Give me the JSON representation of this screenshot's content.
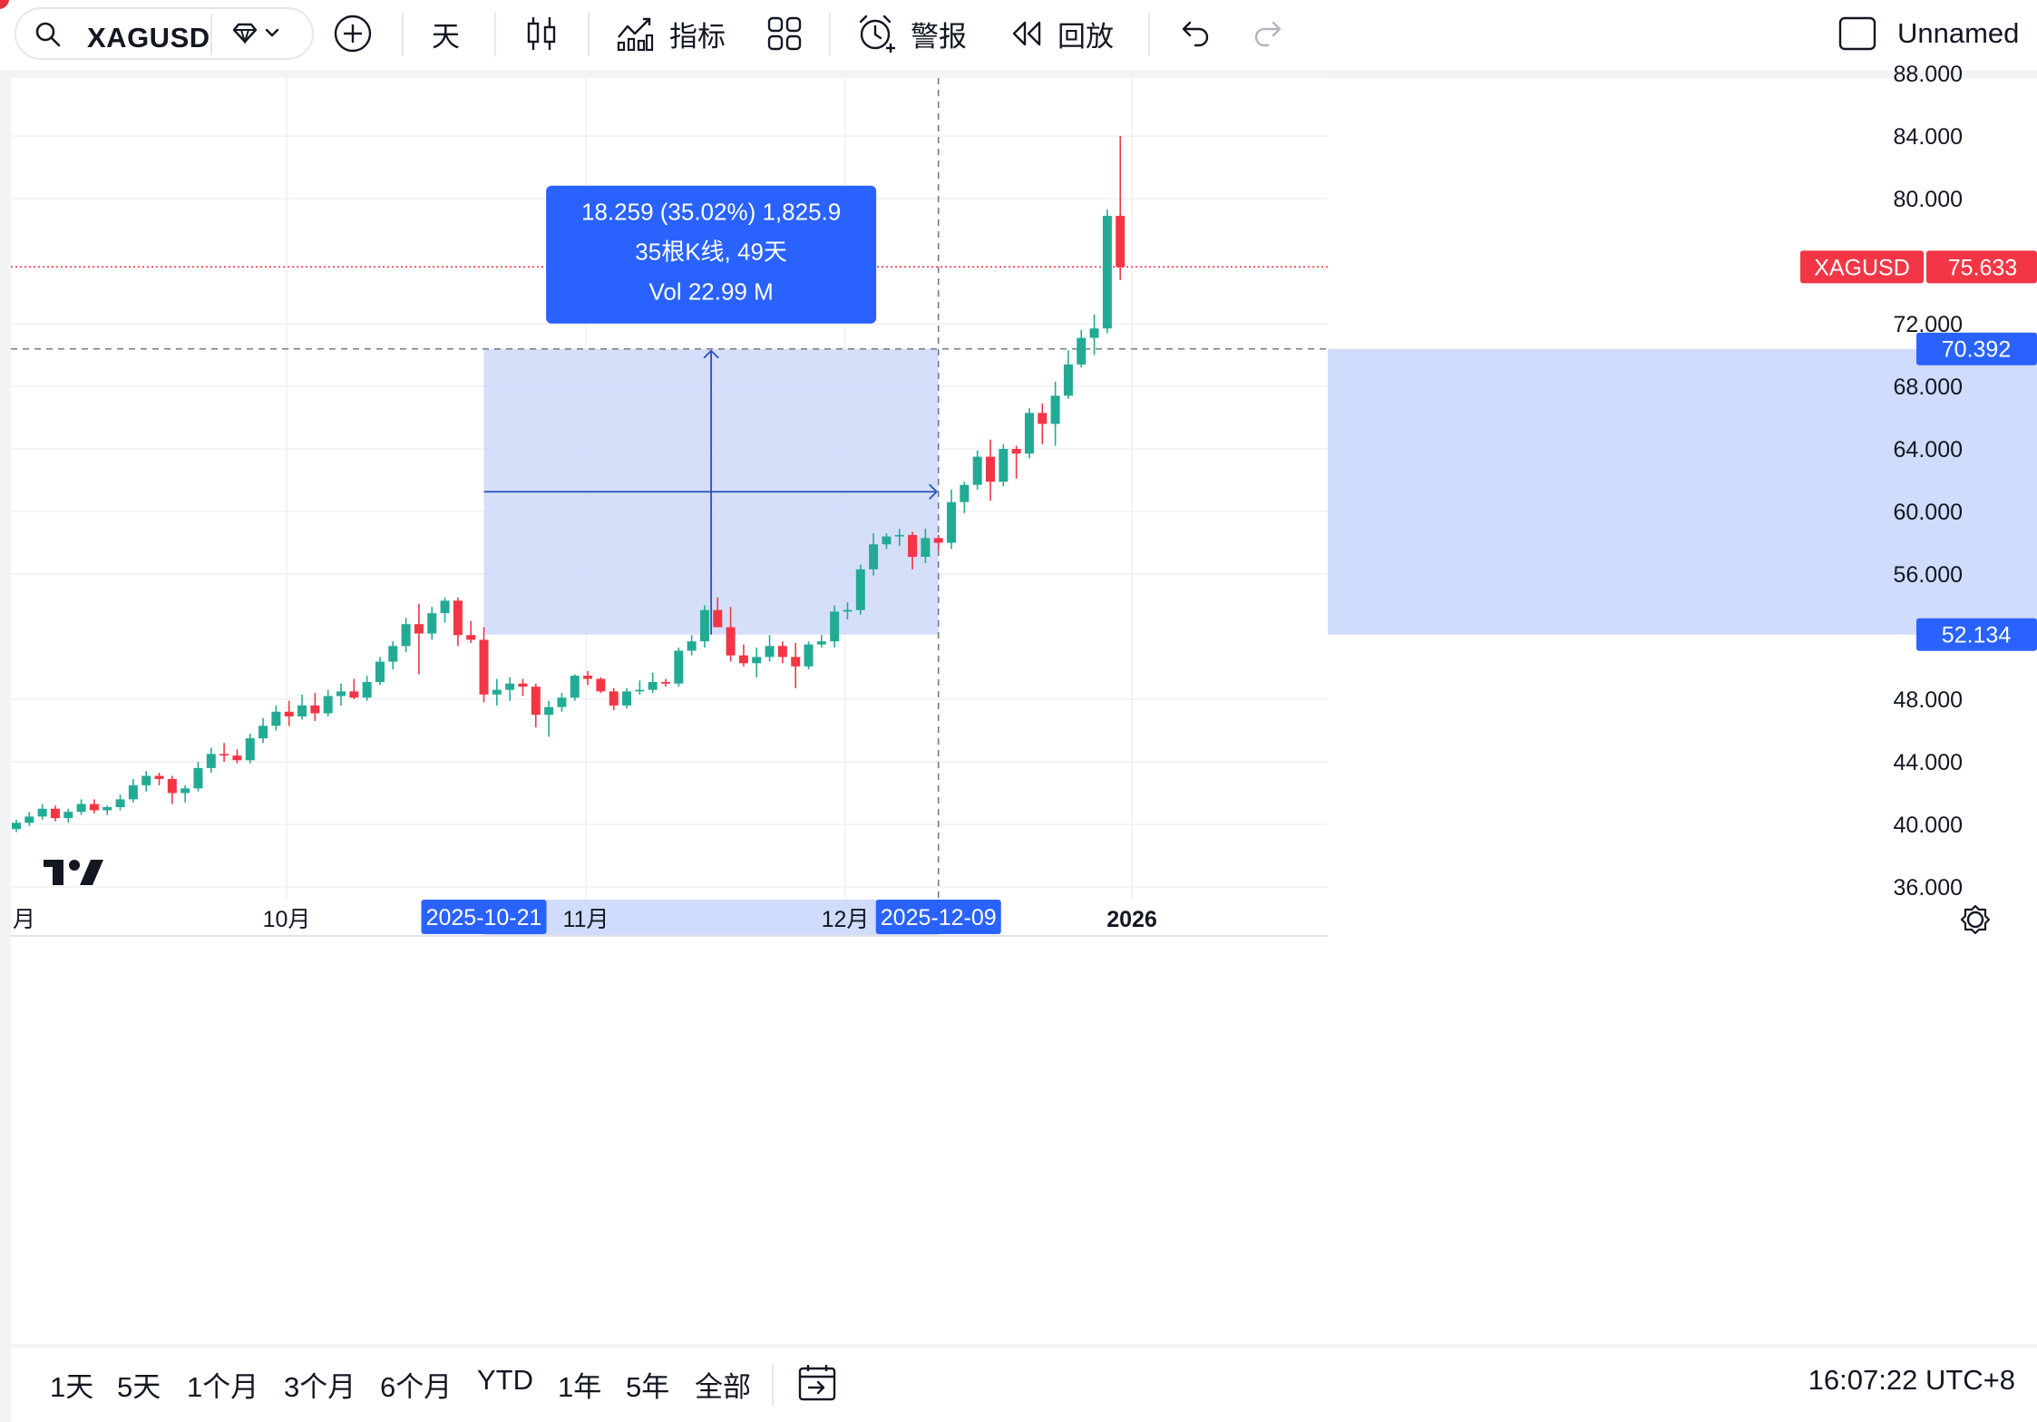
{
  "toolbar": {
    "symbol": "XAGUSD",
    "interval": "天",
    "indicators_label": "指标",
    "alerts_label": "警报",
    "replay_label": "回放",
    "layout_name": "Unnamed"
  },
  "chart_data": {
    "type": "candlestick",
    "symbol": "XAGUSD",
    "ylim": [
      36,
      88
    ],
    "y_ticks": [
      "88.000",
      "84.000",
      "80.000",
      "72.000",
      "68.000",
      "64.000",
      "60.000",
      "56.000",
      "48.000",
      "44.000",
      "40.000",
      "36.000"
    ],
    "x_ticks": [
      "月",
      "10月",
      "11月",
      "12月",
      "2026"
    ],
    "current_price": {
      "label": "XAGUSD",
      "value": "75.633"
    },
    "crosshair_price": "70.392",
    "range_low_price": "52.134",
    "range_start_date": "2025-10-21",
    "range_end_date": "2025-12-09",
    "measure": {
      "line1": "18.259 (35.02%) 1,825.9",
      "line2": "35根K线, 49天",
      "line3": "Vol 22.99 M"
    },
    "candles": [
      [
        39.7,
        40.3,
        39.5,
        40.1
      ],
      [
        40.1,
        40.8,
        39.9,
        40.5
      ],
      [
        40.5,
        41.3,
        40.3,
        41.0
      ],
      [
        41.0,
        41.2,
        40.2,
        40.4
      ],
      [
        40.4,
        41.0,
        40.1,
        40.8
      ],
      [
        40.8,
        41.6,
        40.6,
        41.3
      ],
      [
        41.3,
        41.6,
        40.7,
        40.9
      ],
      [
        40.9,
        41.2,
        40.6,
        41.1
      ],
      [
        41.1,
        41.9,
        40.9,
        41.6
      ],
      [
        41.6,
        42.9,
        41.4,
        42.5
      ],
      [
        42.5,
        43.4,
        42.1,
        43.1
      ],
      [
        43.1,
        43.3,
        42.5,
        42.9
      ],
      [
        42.9,
        43.1,
        41.3,
        42.0
      ],
      [
        42.0,
        42.5,
        41.4,
        42.3
      ],
      [
        42.3,
        44.0,
        42.1,
        43.6
      ],
      [
        43.6,
        44.9,
        43.3,
        44.5
      ],
      [
        44.5,
        45.2,
        44.0,
        44.4
      ],
      [
        44.4,
        44.8,
        43.9,
        44.1
      ],
      [
        44.1,
        45.8,
        43.9,
        45.5
      ],
      [
        45.5,
        46.8,
        45.2,
        46.3
      ],
      [
        46.3,
        47.6,
        46.0,
        47.2
      ],
      [
        47.2,
        47.9,
        46.3,
        46.9
      ],
      [
        46.9,
        48.3,
        46.7,
        47.6
      ],
      [
        47.6,
        48.4,
        46.6,
        47.1
      ],
      [
        47.1,
        48.6,
        46.9,
        48.2
      ],
      [
        48.2,
        49.0,
        47.6,
        48.5
      ],
      [
        48.5,
        49.3,
        48.0,
        48.1
      ],
      [
        48.1,
        49.5,
        47.9,
        49.1
      ],
      [
        49.1,
        50.7,
        48.9,
        50.4
      ],
      [
        50.4,
        51.7,
        49.9,
        51.4
      ],
      [
        51.4,
        53.2,
        51.0,
        52.8
      ],
      [
        52.8,
        54.1,
        49.6,
        52.2
      ],
      [
        52.2,
        53.9,
        51.8,
        53.5
      ],
      [
        53.5,
        54.5,
        52.9,
        54.3
      ],
      [
        54.3,
        54.5,
        51.4,
        52.1
      ],
      [
        52.1,
        53.0,
        51.6,
        51.8
      ],
      [
        51.8,
        52.6,
        47.8,
        48.3
      ],
      [
        48.3,
        49.3,
        47.6,
        48.6
      ],
      [
        48.6,
        49.4,
        47.9,
        49.0
      ],
      [
        49.0,
        49.3,
        48.2,
        48.8
      ],
      [
        48.8,
        49.0,
        46.2,
        47.0
      ],
      [
        47.0,
        47.9,
        45.6,
        47.5
      ],
      [
        47.5,
        48.4,
        47.2,
        48.1
      ],
      [
        48.1,
        49.6,
        47.9,
        49.5
      ],
      [
        49.5,
        49.8,
        48.9,
        49.3
      ],
      [
        49.3,
        49.4,
        48.4,
        48.5
      ],
      [
        48.5,
        48.7,
        47.3,
        47.6
      ],
      [
        47.6,
        48.7,
        47.4,
        48.5
      ],
      [
        48.5,
        49.2,
        48.3,
        48.6
      ],
      [
        48.6,
        49.7,
        48.4,
        49.1
      ],
      [
        49.1,
        49.3,
        48.8,
        49.0
      ],
      [
        49.0,
        51.3,
        48.8,
        51.1
      ],
      [
        51.1,
        52.1,
        50.8,
        51.7
      ],
      [
        51.7,
        54.0,
        51.3,
        53.7
      ],
      [
        53.7,
        54.5,
        52.6,
        52.6
      ],
      [
        52.6,
        53.9,
        50.4,
        50.8
      ],
      [
        50.8,
        51.5,
        50.1,
        50.3
      ],
      [
        50.3,
        51.3,
        49.4,
        50.7
      ],
      [
        50.7,
        52.1,
        50.4,
        51.4
      ],
      [
        51.4,
        51.7,
        50.3,
        50.7
      ],
      [
        50.7,
        51.6,
        48.7,
        50.1
      ],
      [
        50.1,
        51.7,
        49.9,
        51.5
      ],
      [
        51.5,
        52.1,
        51.3,
        51.7
      ],
      [
        51.7,
        54.0,
        51.3,
        53.6
      ],
      [
        53.6,
        54.2,
        53.1,
        53.7
      ],
      [
        53.7,
        56.6,
        53.4,
        56.3
      ],
      [
        56.3,
        58.6,
        55.9,
        57.9
      ],
      [
        57.9,
        58.6,
        57.6,
        58.4
      ],
      [
        58.4,
        58.9,
        57.8,
        58.5
      ],
      [
        58.5,
        58.7,
        56.3,
        57.1
      ],
      [
        57.1,
        58.9,
        56.7,
        58.3
      ],
      [
        58.3,
        58.5,
        57.5,
        58.0
      ],
      [
        58.0,
        61.4,
        57.6,
        60.6
      ],
      [
        60.6,
        61.9,
        59.9,
        61.7
      ],
      [
        61.7,
        63.9,
        61.4,
        63.5
      ],
      [
        63.5,
        64.6,
        60.7,
        61.9
      ],
      [
        61.9,
        64.3,
        61.6,
        64.0
      ],
      [
        64.0,
        64.2,
        62.1,
        63.7
      ],
      [
        63.7,
        66.6,
        63.4,
        66.3
      ],
      [
        66.3,
        66.9,
        64.3,
        65.6
      ],
      [
        65.6,
        68.3,
        64.2,
        67.4
      ],
      [
        67.4,
        70.3,
        67.2,
        69.4
      ],
      [
        69.4,
        71.6,
        69.2,
        71.1
      ],
      [
        71.1,
        72.6,
        70.0,
        71.7
      ],
      [
        71.7,
        79.3,
        71.4,
        78.9
      ],
      [
        78.9,
        84.0,
        74.8,
        75.633
      ]
    ]
  },
  "ranges": [
    "1天",
    "5天",
    "1个月",
    "3个月",
    "6个月",
    "YTD",
    "1年",
    "5年",
    "全部"
  ],
  "clock": "16:07:22 UTC+8",
  "colors": {
    "up": "#22ab94",
    "down": "#f23645",
    "accent": "#2962ff",
    "price_tag": "#f23645"
  }
}
